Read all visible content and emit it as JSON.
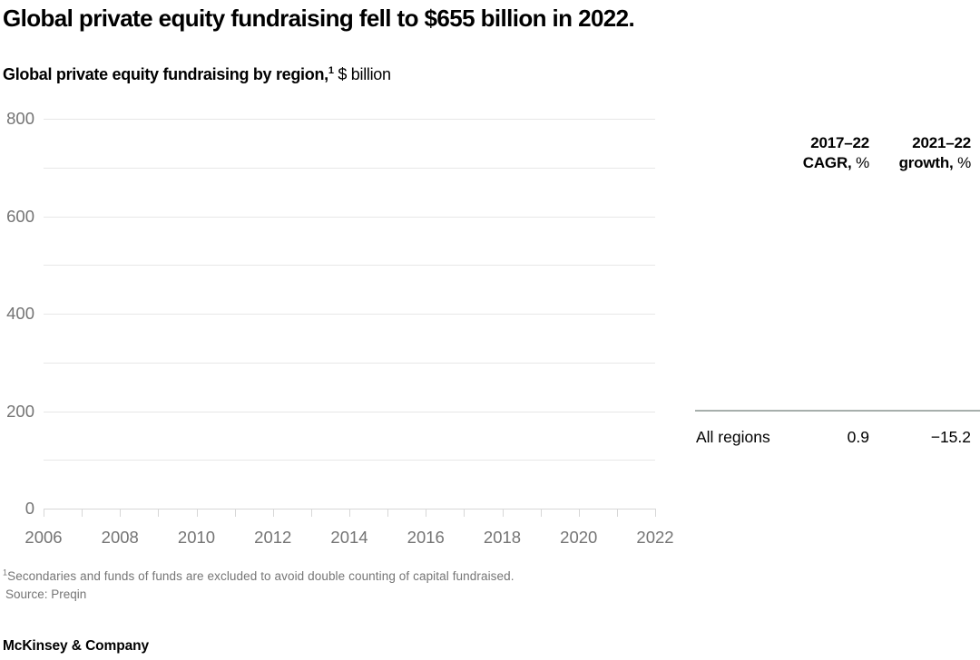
{
  "header": {
    "title": "Global private equity fundraising fell to $655 billion in 2022.",
    "subtitle_bold": "Global private equity fundraising by region,",
    "subtitle_sup": "1",
    "subtitle_rest": " $ billion"
  },
  "chart_data": {
    "type": "bar",
    "title": "Global private equity fundraising by region, $ billion",
    "xlabel": "",
    "ylabel": "$ billion",
    "xlim": [
      2006,
      2022
    ],
    "ylim": [
      0,
      800
    ],
    "y_gridline_step": 100,
    "y_tick_labels": [
      "0",
      "200",
      "400",
      "600",
      "800"
    ],
    "x_tick_step_years": 1,
    "x_tick_labels": [
      "2006",
      "2008",
      "2010",
      "2012",
      "2014",
      "2016",
      "2018",
      "2020",
      "2022"
    ],
    "grid": "horizontal gridlines every 100; x ticks every year below axis",
    "legend": "none",
    "series": [],
    "annotation": "plot area is empty in this frame (no bars/series rendered)"
  },
  "table": {
    "col1_header_line1": "2017–22",
    "col1_header_line2_bold": "CAGR,",
    "col1_header_line2_unit": " %",
    "col2_header_line1": "2021–22",
    "col2_header_line2_bold": "growth,",
    "col2_header_line2_unit": " %",
    "rows": [
      {
        "label": "All regions",
        "cagr_2017_22": "0.9",
        "growth_2021_22": "−15.2"
      }
    ]
  },
  "footnotes": {
    "note1_sup": "1",
    "note1_text": "Secondaries and funds of funds are excluded to avoid double counting of capital fundraised.",
    "source": "Source: Preqin"
  },
  "footer": {
    "logo_text": "McKinsey & Company"
  },
  "colors": {
    "text": "#000000",
    "axis_label": "#747474",
    "gridline": "#e7e7e7",
    "axis_line": "#d7d7d7",
    "table_rule": "#a7afac",
    "footnote": "#757575",
    "background": "#ffffff"
  }
}
